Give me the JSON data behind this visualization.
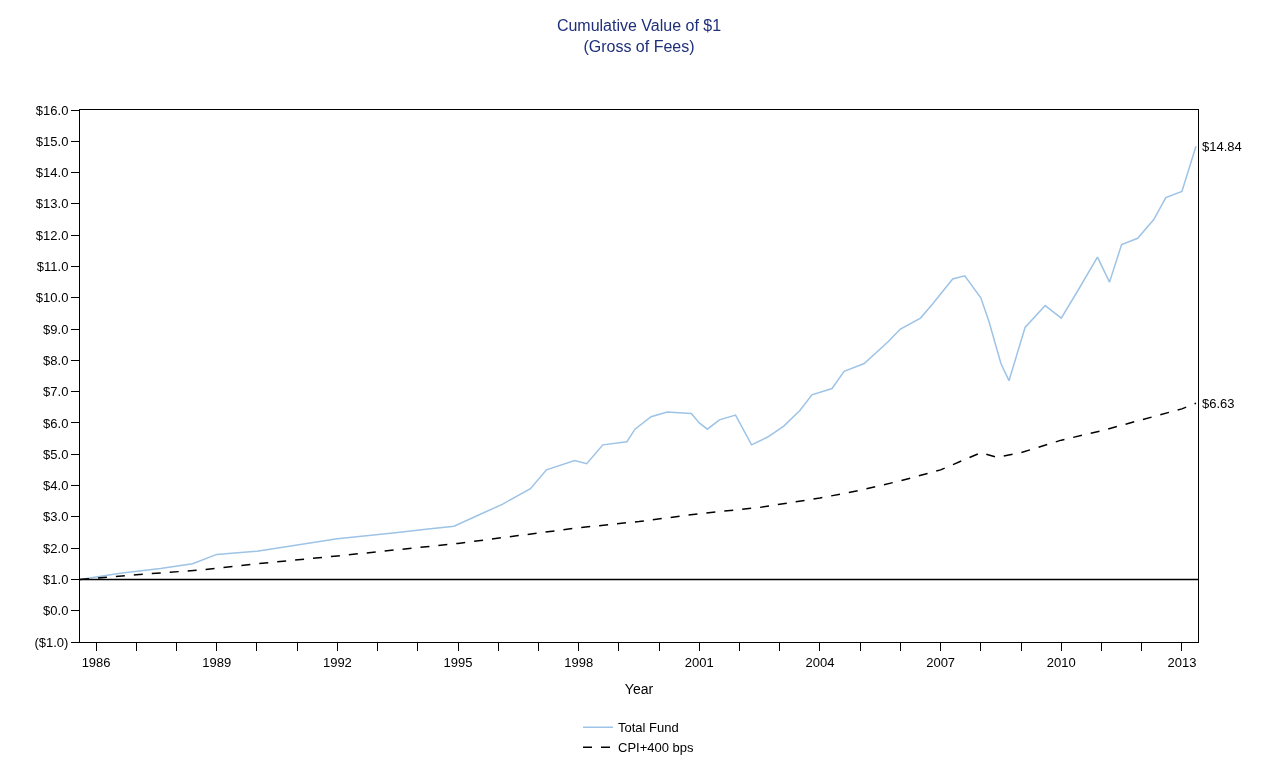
{
  "chart_data": {
    "type": "line",
    "title": "Cumulative Value of $1",
    "subtitle": "(Gross of Fees)",
    "xlabel": "Year",
    "series": [
      {
        "name": "Total Fund",
        "color": "#9dc3e6",
        "line_style": "solid",
        "x": [
          1985.6,
          1986.6,
          1987.6,
          1988.4,
          1989.0,
          1990.0,
          1991.0,
          1992.0,
          1993.5,
          1994.2,
          1994.9,
          1995.5,
          1996.1,
          1996.8,
          1997.2,
          1997.9,
          1998.2,
          1998.6,
          1999.2,
          1999.4,
          1999.8,
          2000.2,
          2000.8,
          2001.0,
          2001.2,
          2001.5,
          2001.9,
          2002.3,
          2002.7,
          2003.1,
          2003.5,
          2003.8,
          2004.3,
          2004.6,
          2005.1,
          2005.7,
          2006.0,
          2006.5,
          2006.8,
          2007.3,
          2007.6,
          2008.0,
          2008.2,
          2008.5,
          2008.7,
          2009.1,
          2009.6,
          2010.0,
          2010.4,
          2010.9,
          2011.2,
          2011.5,
          2011.9,
          2012.3,
          2012.6,
          2013.0,
          2013.35
        ],
        "values": [
          1.0,
          1.2,
          1.35,
          1.5,
          1.8,
          1.9,
          2.1,
          2.3,
          2.5,
          2.6,
          2.7,
          3.05,
          3.4,
          3.9,
          4.5,
          4.8,
          4.7,
          5.3,
          5.4,
          5.8,
          6.2,
          6.35,
          6.3,
          6.0,
          5.8,
          6.1,
          6.25,
          5.3,
          5.55,
          5.9,
          6.4,
          6.9,
          7.1,
          7.65,
          7.9,
          8.6,
          9.0,
          9.35,
          9.8,
          10.6,
          10.7,
          10.0,
          9.25,
          7.9,
          7.35,
          9.05,
          9.75,
          9.35,
          10.2,
          11.3,
          10.5,
          11.7,
          11.9,
          12.5,
          13.2,
          13.4,
          14.84
        ]
      },
      {
        "name": "CPI+400 bps",
        "color": "#000000",
        "line_style": "dashed",
        "x": [
          1985.6,
          1987,
          1988.6,
          1990,
          1992,
          1993.5,
          1995,
          1996.5,
          1998,
          1999.5,
          2001,
          2002.5,
          2004,
          2005,
          2006,
          2007,
          2008,
          2008.4,
          2009,
          2010,
          2011,
          2012,
          2013,
          2013.35
        ],
        "values": [
          1.0,
          1.15,
          1.3,
          1.5,
          1.75,
          1.95,
          2.15,
          2.4,
          2.65,
          2.85,
          3.1,
          3.3,
          3.6,
          3.85,
          4.15,
          4.5,
          5.05,
          4.9,
          5.05,
          5.45,
          5.75,
          6.1,
          6.45,
          6.63
        ]
      }
    ],
    "xlim": [
      1985.6,
      2013.4
    ],
    "xticks": [
      1986,
      {
        "value": 1987,
        "label": null
      },
      {
        "value": 1988,
        "label": null
      },
      1989,
      {
        "value": 1990,
        "label": null
      },
      {
        "value": 1991,
        "label": null
      },
      1992,
      {
        "value": 1993,
        "label": null
      },
      {
        "value": 1994,
        "label": null
      },
      1995,
      {
        "value": 1996,
        "label": null
      },
      {
        "value": 1997,
        "label": null
      },
      1998,
      {
        "value": 1999,
        "label": null
      },
      {
        "value": 2000,
        "label": null
      },
      2001,
      {
        "value": 2002,
        "label": null
      },
      {
        "value": 2003,
        "label": null
      },
      2004,
      {
        "value": 2005,
        "label": null
      },
      {
        "value": 2006,
        "label": null
      },
      2007,
      {
        "value": 2008,
        "label": null
      },
      {
        "value": 2009,
        "label": null
      },
      2010,
      {
        "value": 2011,
        "label": null
      },
      {
        "value": 2012,
        "label": null
      },
      2013
    ],
    "ylim": [
      -1,
      16
    ],
    "yticks": [
      {
        "value": -1,
        "label": "($1.0)"
      },
      {
        "value": 0,
        "label": "$0.0"
      },
      {
        "value": 1,
        "label": "$1.0"
      },
      {
        "value": 2,
        "label": "$2.0"
      },
      {
        "value": 3,
        "label": "$3.0"
      },
      {
        "value": 4,
        "label": "$4.0"
      },
      {
        "value": 5,
        "label": "$5.0"
      },
      {
        "value": 6,
        "label": "$6.0"
      },
      {
        "value": 7,
        "label": "$7.0"
      },
      {
        "value": 8,
        "label": "$8.0"
      },
      {
        "value": 9,
        "label": "$9.0"
      },
      {
        "value": 10,
        "label": "$10.0"
      },
      {
        "value": 11,
        "label": "$11.0"
      },
      {
        "value": 12,
        "label": "$12.0"
      },
      {
        "value": 13,
        "label": "$13.0"
      },
      {
        "value": 14,
        "label": "$14.0"
      },
      {
        "value": 15,
        "label": "$15.0"
      },
      {
        "value": 16,
        "label": "$16.0"
      }
    ],
    "ref_lines": [
      {
        "axis": "y",
        "value": 1,
        "color": "#000000",
        "line_style": "solid"
      }
    ],
    "annotations": [
      {
        "text": "$14.84",
        "x": 2013.35,
        "y": 14.84
      },
      {
        "text": "$6.63",
        "x": 2013.35,
        "y": 6.63
      }
    ],
    "legend": "bottom",
    "marker": "none"
  }
}
